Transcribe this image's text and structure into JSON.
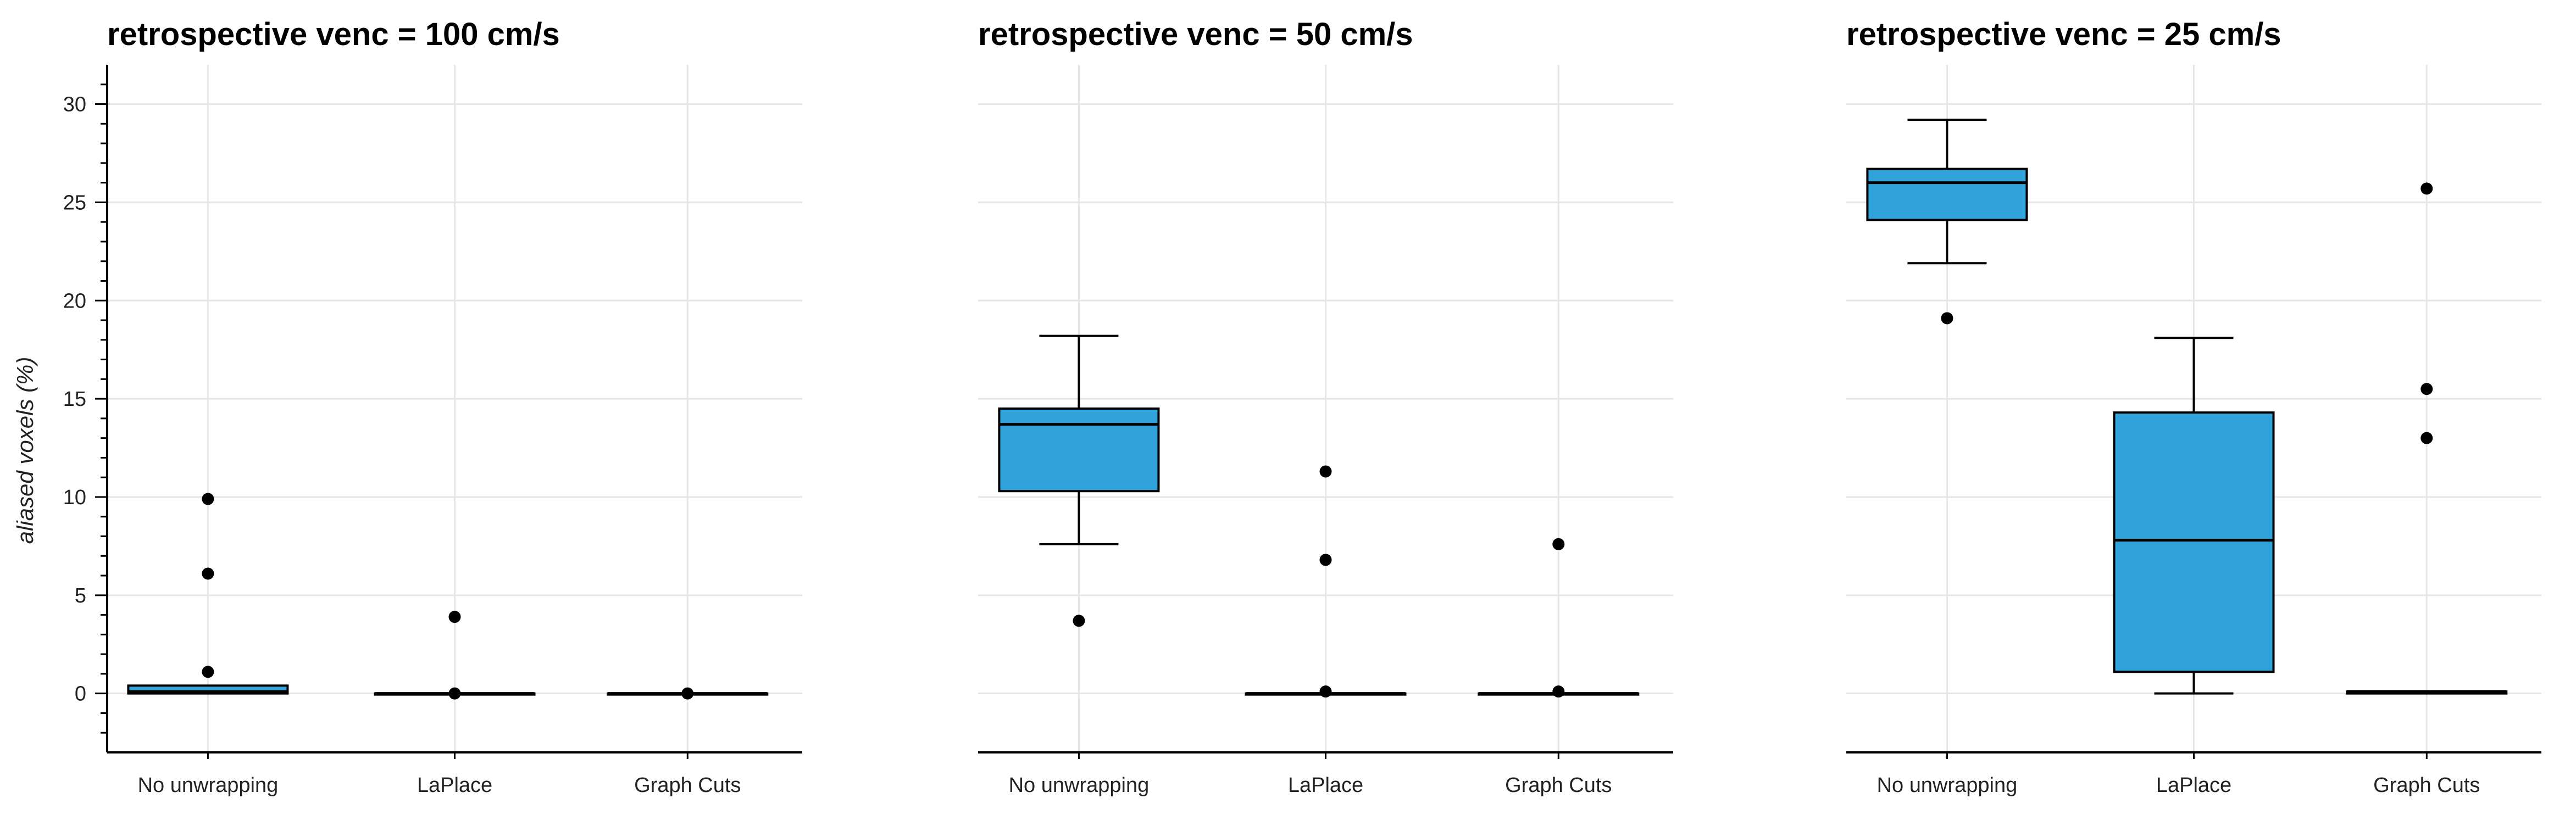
{
  "colors": {
    "box_fill": "#2fa3da",
    "outlier": "#000000",
    "grid": "#e6e6e6"
  },
  "chart_data": {
    "type": "box",
    "ylabel": "aliased voxels (%)",
    "ylim": [
      -3,
      32
    ],
    "yticks": [
      0,
      5,
      10,
      15,
      20,
      25,
      30
    ],
    "categories": [
      "No unwrapping",
      "LaPlace",
      "Graph Cuts"
    ],
    "panels": [
      {
        "title": "retrospective venc = 100 cm/s",
        "boxes": [
          {
            "category": "No unwrapping",
            "whislo": 0,
            "q1": 0,
            "med": 0.1,
            "q3": 0.4,
            "whishi": 0.4,
            "outliers": [
              1.1,
              6.1,
              9.9
            ]
          },
          {
            "category": "LaPlace",
            "whislo": 0,
            "q1": 0,
            "med": 0,
            "q3": 0,
            "whishi": 0,
            "outliers": [
              0,
              3.9
            ]
          },
          {
            "category": "Graph Cuts",
            "whislo": 0,
            "q1": 0,
            "med": 0,
            "q3": 0,
            "whishi": 0,
            "outliers": [
              0
            ]
          }
        ]
      },
      {
        "title": "retrospective venc = 50 cm/s",
        "boxes": [
          {
            "category": "No unwrapping",
            "whislo": 7.6,
            "q1": 10.3,
            "med": 13.7,
            "q3": 14.5,
            "whishi": 18.2,
            "outliers": [
              3.7
            ]
          },
          {
            "category": "LaPlace",
            "whislo": 0,
            "q1": 0,
            "med": 0,
            "q3": 0,
            "whishi": 0,
            "outliers": [
              0.1,
              6.8,
              11.3
            ]
          },
          {
            "category": "Graph Cuts",
            "whislo": 0,
            "q1": 0,
            "med": 0,
            "q3": 0,
            "whishi": 0,
            "outliers": [
              0.1,
              7.6
            ]
          }
        ]
      },
      {
        "title": "retrospective venc = 25 cm/s",
        "boxes": [
          {
            "category": "No unwrapping",
            "whislo": 21.9,
            "q1": 24.1,
            "med": 26.0,
            "q3": 26.7,
            "whishi": 29.2,
            "outliers": [
              19.1
            ]
          },
          {
            "category": "LaPlace",
            "whislo": 0,
            "q1": 1.1,
            "med": 7.8,
            "q3": 14.3,
            "whishi": 18.1,
            "outliers": []
          },
          {
            "category": "Graph Cuts",
            "whislo": 0,
            "q1": 0,
            "med": 0.1,
            "q3": 0.1,
            "whishi": 0.1,
            "outliers": [
              13.0,
              15.5,
              25.7
            ]
          }
        ]
      }
    ]
  }
}
